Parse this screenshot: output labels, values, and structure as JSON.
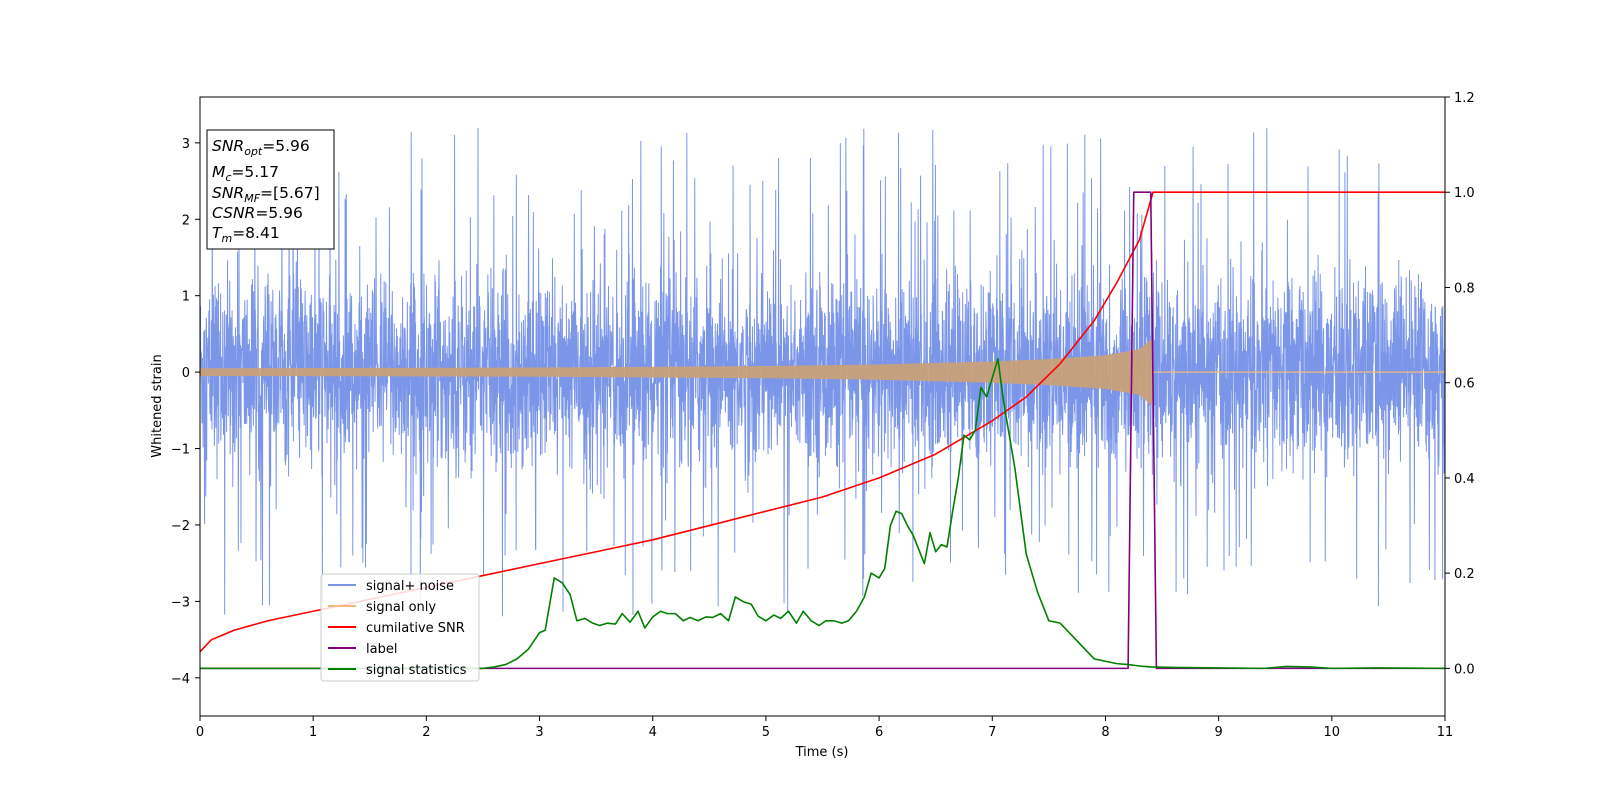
{
  "chart_data": {
    "type": "line",
    "title": "",
    "xlabel": "Time (s)",
    "ylabel": "Whitened strain",
    "xlim": [
      0,
      11
    ],
    "ylim_left": [
      -4.5,
      3.6
    ],
    "ylim_right": [
      -0.1,
      1.2
    ],
    "grid": false,
    "legend_position": "lower-left",
    "x_ticks": [
      0,
      1,
      2,
      3,
      4,
      5,
      6,
      7,
      8,
      9,
      10,
      11
    ],
    "y_left_ticks": [
      -4,
      -3,
      -2,
      -1,
      0,
      1,
      2,
      3
    ],
    "y_right_ticks": [
      0.0,
      0.2,
      0.4,
      0.6,
      0.8,
      1.0,
      1.2
    ],
    "series": [
      {
        "name": "signal+ noise",
        "axis": "left",
        "color": "#7b96e8",
        "kind": "noise",
        "x_range": [
          0,
          11
        ],
        "band": [
          -1.5,
          1.5
        ],
        "extremes": [
          -4.15,
          3.27
        ]
      },
      {
        "name": "signal only",
        "axis": "left",
        "color": "#f4b87a",
        "kind": "chirp",
        "x_range": [
          0,
          8.42
        ],
        "envelope": [
          [
            0,
            0.05
          ],
          [
            3,
            0.06
          ],
          [
            5,
            0.08
          ],
          [
            6,
            0.1
          ],
          [
            7,
            0.14
          ],
          [
            7.5,
            0.17
          ],
          [
            8,
            0.22
          ],
          [
            8.3,
            0.3
          ],
          [
            8.42,
            0.45
          ]
        ]
      },
      {
        "name": "cumilative SNR",
        "axis": "right",
        "color": "#ff0000",
        "x": [
          0,
          0.1,
          0.3,
          0.6,
          1,
          1.5,
          2,
          2.5,
          3,
          3.5,
          4,
          4.5,
          5,
          5.5,
          6,
          6.5,
          7,
          7.3,
          7.6,
          7.9,
          8.1,
          8.3,
          8.42,
          8.5,
          11
        ],
        "values": [
          0.035,
          0.06,
          0.08,
          0.1,
          0.12,
          0.145,
          0.17,
          0.195,
          0.22,
          0.245,
          0.27,
          0.3,
          0.33,
          0.36,
          0.4,
          0.45,
          0.52,
          0.57,
          0.64,
          0.73,
          0.81,
          0.9,
          1.0,
          1.0,
          1.0
        ]
      },
      {
        "name": "label",
        "axis": "right",
        "color": "#800080",
        "x": [
          0,
          8.2,
          8.25,
          8.4,
          8.45,
          11
        ],
        "values": [
          0,
          0,
          1,
          1,
          0,
          0
        ]
      },
      {
        "name": "signal statistics",
        "axis": "right",
        "color": "#008000",
        "x": [
          0,
          2.5,
          2.6,
          2.7,
          2.8,
          2.9,
          3.0,
          3.05,
          3.13,
          3.2,
          3.27,
          3.33,
          3.4,
          3.47,
          3.53,
          3.6,
          3.67,
          3.73,
          3.8,
          3.87,
          3.93,
          4.0,
          4.07,
          4.13,
          4.2,
          4.27,
          4.33,
          4.4,
          4.47,
          4.53,
          4.6,
          4.67,
          4.73,
          4.8,
          4.87,
          4.93,
          5.0,
          5.07,
          5.13,
          5.2,
          5.27,
          5.33,
          5.4,
          5.47,
          5.53,
          5.6,
          5.67,
          5.73,
          5.8,
          5.87,
          5.93,
          6.0,
          6.05,
          6.1,
          6.15,
          6.2,
          6.25,
          6.3,
          6.35,
          6.4,
          6.45,
          6.5,
          6.55,
          6.6,
          6.65,
          6.7,
          6.75,
          6.8,
          6.85,
          6.9,
          6.95,
          7.0,
          7.05,
          7.1,
          7.2,
          7.3,
          7.4,
          7.5,
          7.6,
          7.7,
          7.8,
          7.9,
          8.0,
          8.1,
          8.2,
          8.3,
          8.4,
          8.6,
          9.0,
          9.4,
          9.6,
          9.8,
          10.0,
          10.4,
          11.0
        ],
        "values": [
          0,
          0,
          0.003,
          0.008,
          0.02,
          0.04,
          0.075,
          0.08,
          0.19,
          0.18,
          0.155,
          0.1,
          0.105,
          0.095,
          0.09,
          0.095,
          0.093,
          0.115,
          0.097,
          0.12,
          0.085,
          0.108,
          0.12,
          0.115,
          0.115,
          0.1,
          0.107,
          0.1,
          0.108,
          0.107,
          0.115,
          0.1,
          0.15,
          0.14,
          0.135,
          0.11,
          0.1,
          0.112,
          0.105,
          0.12,
          0.095,
          0.12,
          0.1,
          0.09,
          0.1,
          0.1,
          0.095,
          0.1,
          0.12,
          0.15,
          0.2,
          0.19,
          0.21,
          0.3,
          0.33,
          0.325,
          0.3,
          0.28,
          0.25,
          0.22,
          0.285,
          0.245,
          0.26,
          0.255,
          0.33,
          0.4,
          0.49,
          0.48,
          0.5,
          0.59,
          0.57,
          0.61,
          0.65,
          0.56,
          0.42,
          0.24,
          0.16,
          0.1,
          0.095,
          0.07,
          0.045,
          0.02,
          0.015,
          0.01,
          0.008,
          0.005,
          0.003,
          0.002,
          0.001,
          0.0,
          0.004,
          0.003,
          0.0,
          0.001,
          0.0
        ]
      }
    ],
    "annotations": [
      {
        "label_main": "SNR",
        "label_sub": "opt",
        "value": "=5.96"
      },
      {
        "label_main": "M",
        "label_sub": "c",
        "value": "=5.17"
      },
      {
        "label_main": "SNR",
        "label_sub": "MF",
        "value": "=[5.67]"
      },
      {
        "label_main": "CSNR",
        "label_sub": "",
        "value": "=5.96"
      },
      {
        "label_main": "T",
        "label_sub": "m",
        "value": "=8.41"
      }
    ]
  }
}
